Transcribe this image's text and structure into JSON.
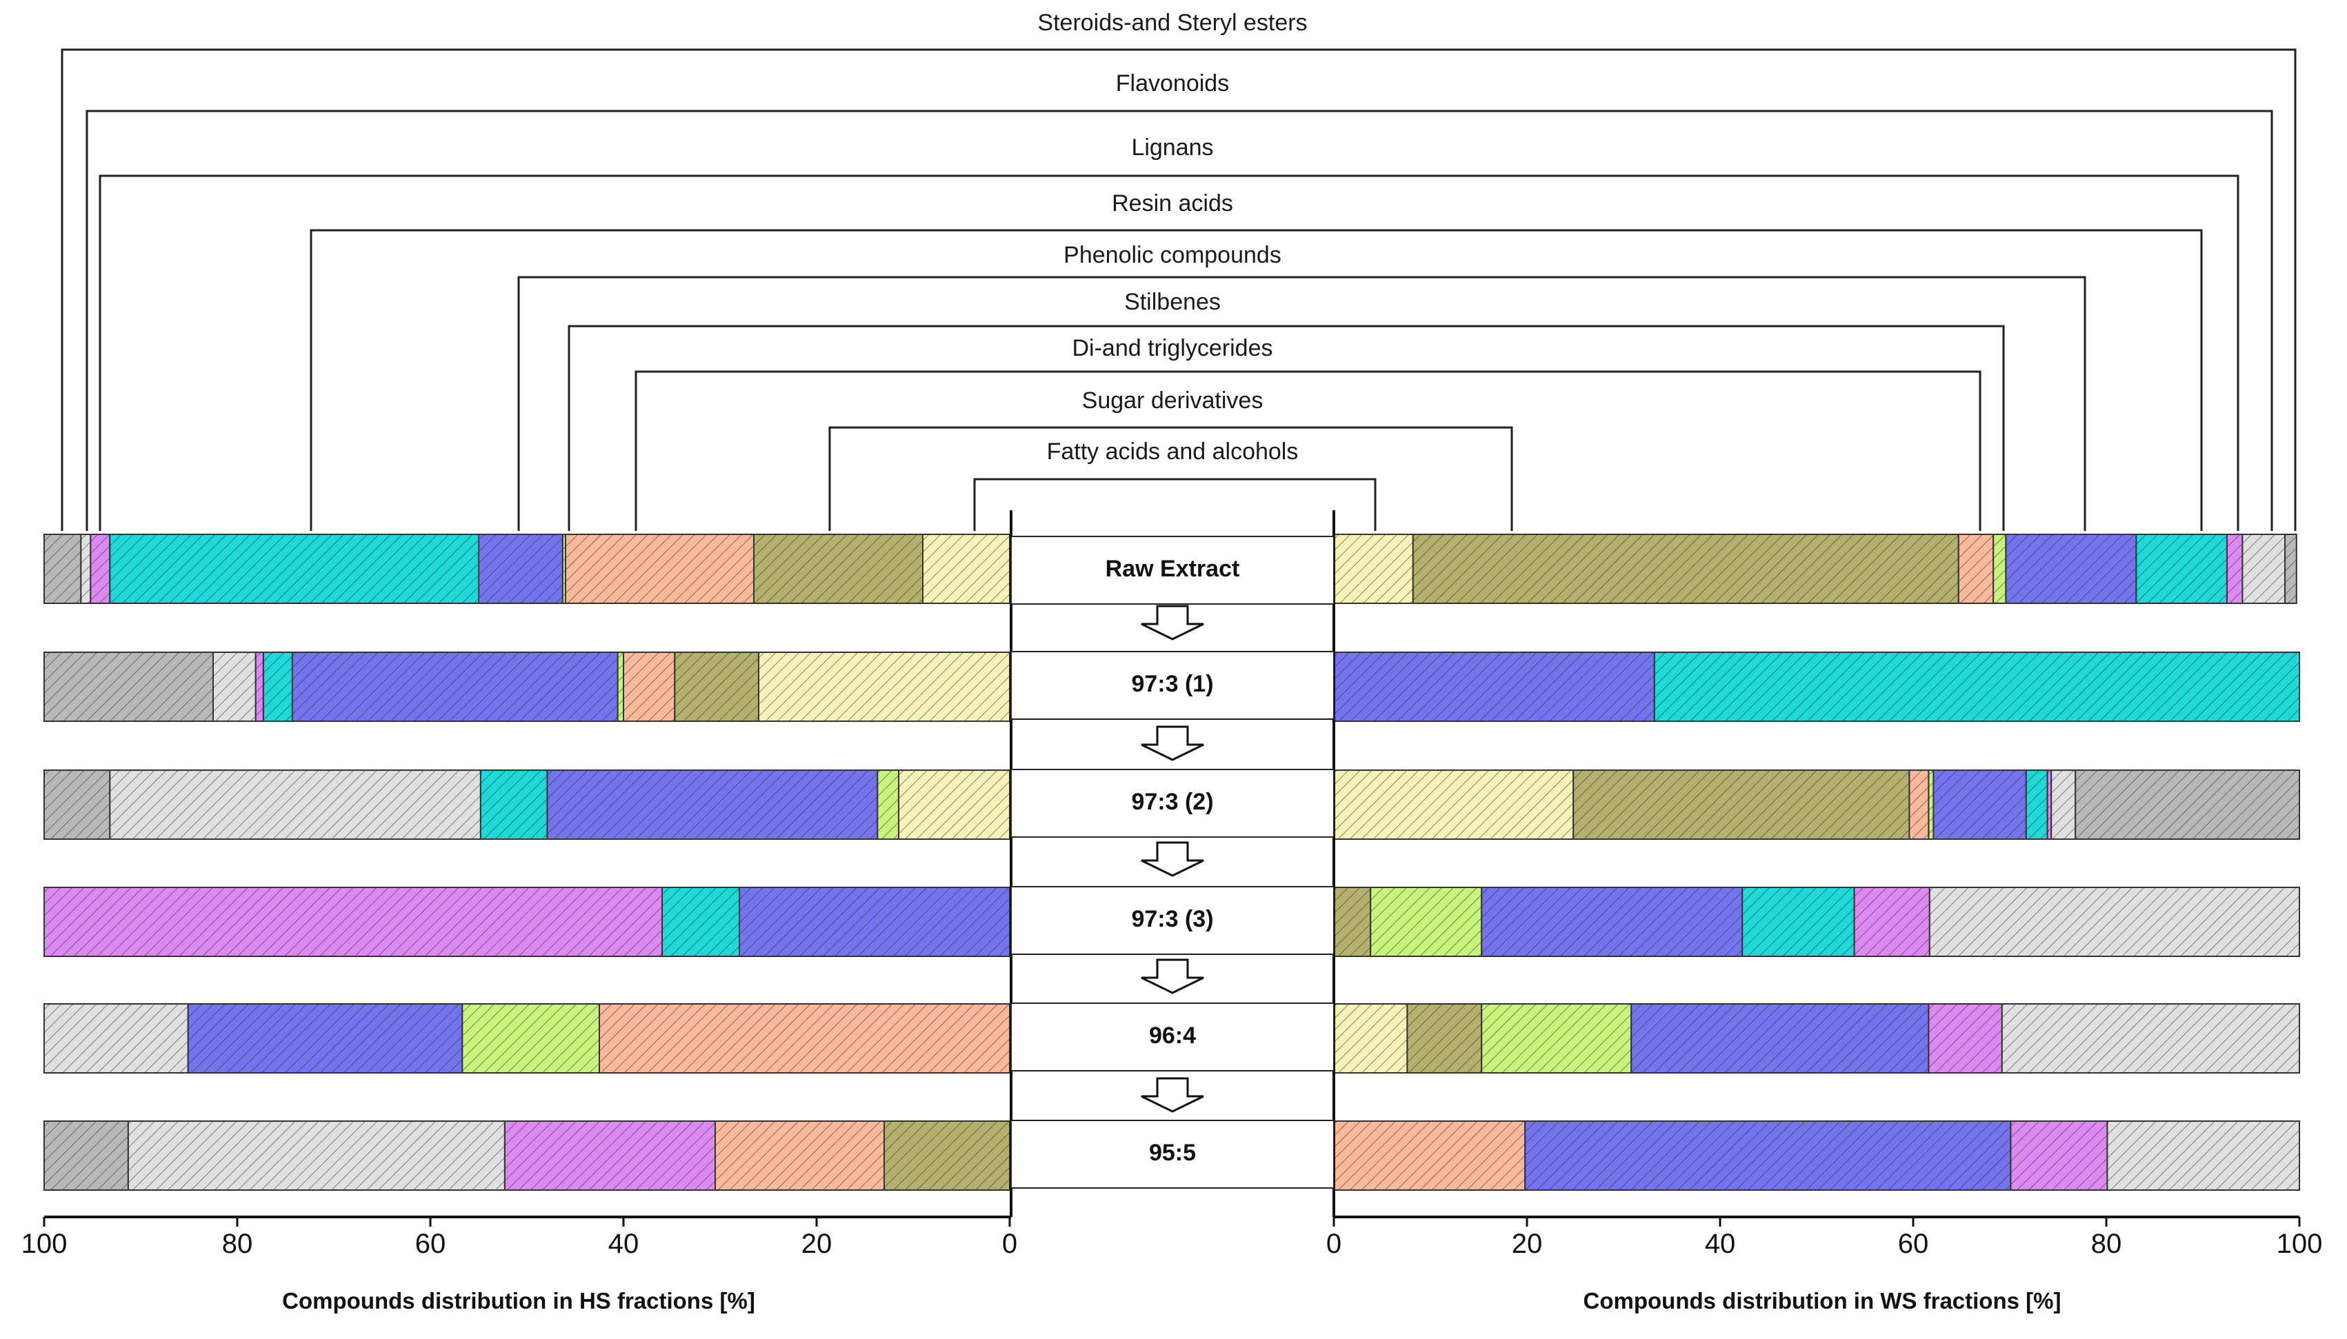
{
  "chart_data": {
    "type": "bar",
    "subtype": "diverging-stacked-horizontal",
    "xlabel_left": "Compounds distribution in HS fractions [%]",
    "xlabel_right": "Compounds distribution in WS fractions [%]",
    "left_ticks": [
      "100",
      "80",
      "60",
      "40",
      "20",
      "0"
    ],
    "right_ticks": [
      "0",
      "20",
      "40",
      "60",
      "80",
      "100"
    ],
    "xlim": [
      0,
      100
    ],
    "categories": [
      {
        "key": "fatty",
        "name": "Fatty acids and alcohols",
        "color": "#f7f3b8"
      },
      {
        "key": "sugar",
        "name": "Sugar derivatives",
        "color": "#b4b06e"
      },
      {
        "key": "glyc",
        "name": "Di-and triglycerides",
        "color": "#f9b99a"
      },
      {
        "key": "stilb",
        "name": "Stilbenes",
        "color": "#c8f47c"
      },
      {
        "key": "phen",
        "name": "Phenolic compounds",
        "color": "#7474ee"
      },
      {
        "key": "resin",
        "name": "Resin acids",
        "color": "#1fd8d8"
      },
      {
        "key": "lign",
        "name": "Lignans",
        "color": "#dc8af2"
      },
      {
        "key": "flav",
        "name": "Flavonoids",
        "color": "#e0e0e0"
      },
      {
        "key": "ster",
        "name": "Steroids-and Steryl esters",
        "color": "#b8b8b8"
      }
    ],
    "rows": [
      {
        "label": "Raw Extract",
        "hs": [
          [
            "fatty",
            9
          ],
          [
            "sugar",
            17.5
          ],
          [
            "glyc",
            19.5
          ],
          [
            "stilb",
            0.3
          ],
          [
            "phen",
            8.7
          ],
          [
            "resin",
            38.2
          ],
          [
            "lign",
            2
          ],
          [
            "flav",
            1
          ],
          [
            "ster",
            3.8
          ]
        ],
        "ws": [
          [
            "fatty",
            8.2
          ],
          [
            "sugar",
            56.5
          ],
          [
            "glyc",
            3.6
          ],
          [
            "stilb",
            1.3
          ],
          [
            "phen",
            13.5
          ],
          [
            "resin",
            9.4
          ],
          [
            "lign",
            1.6
          ],
          [
            "flav",
            4.4
          ],
          [
            "ster",
            1.2
          ]
        ]
      },
      {
        "label": "97:3 (1)",
        "hs": [
          [
            "fatty",
            26
          ],
          [
            "sugar",
            8.7
          ],
          [
            "glyc",
            5.3
          ],
          [
            "stilb",
            0.6
          ],
          [
            "phen",
            33.7
          ],
          [
            "resin",
            3
          ],
          [
            "lign",
            0.8
          ],
          [
            "flav",
            4.4
          ],
          [
            "ster",
            17.5
          ]
        ],
        "ws": [
          [
            "phen",
            33.2
          ],
          [
            "resin",
            66.8
          ]
        ]
      },
      {
        "label": "97:3 (2)",
        "hs": [
          [
            "fatty",
            11.5
          ],
          [
            "stilb",
            2.2
          ],
          [
            "phen",
            34.2
          ],
          [
            "resin",
            6.9
          ],
          [
            "flav",
            38.4
          ],
          [
            "ster",
            6.8
          ]
        ],
        "ws": [
          [
            "fatty",
            24.8
          ],
          [
            "sugar",
            34.8
          ],
          [
            "glyc",
            2
          ],
          [
            "stilb",
            0.5
          ],
          [
            "phen",
            9.6
          ],
          [
            "resin",
            2.2
          ],
          [
            "lign",
            0.4
          ],
          [
            "flav",
            2.5
          ],
          [
            "ster",
            23.2
          ]
        ]
      },
      {
        "label": "97:3 (3)",
        "hs": [
          [
            "phen",
            28
          ],
          [
            "resin",
            8
          ],
          [
            "lign",
            64
          ]
        ],
        "ws": [
          [
            "sugar",
            3.8
          ],
          [
            "stilb",
            11.5
          ],
          [
            "phen",
            27
          ],
          [
            "resin",
            11.6
          ],
          [
            "lign",
            7.8
          ],
          [
            "flav",
            38.3
          ]
        ]
      },
      {
        "label": "96:4",
        "hs": [
          [
            "glyc",
            42.5
          ],
          [
            "stilb",
            14.2
          ],
          [
            "phen",
            28.4
          ],
          [
            "flav",
            14.9
          ]
        ],
        "ws": [
          [
            "fatty",
            7.6
          ],
          [
            "sugar",
            7.7
          ],
          [
            "stilb",
            15.5
          ],
          [
            "phen",
            30.8
          ],
          [
            "lign",
            7.6
          ],
          [
            "flav",
            30.8
          ]
        ]
      },
      {
        "label": "95:5",
        "hs": [
          [
            "sugar",
            13
          ],
          [
            "glyc",
            17.5
          ],
          [
            "lign",
            21.8
          ],
          [
            "flav",
            39
          ],
          [
            "ster",
            8.7
          ]
        ],
        "ws": [
          [
            "glyc",
            19.8
          ],
          [
            "phen",
            50.3
          ],
          [
            "lign",
            10
          ],
          [
            "flav",
            19.9
          ]
        ]
      }
    ]
  }
}
